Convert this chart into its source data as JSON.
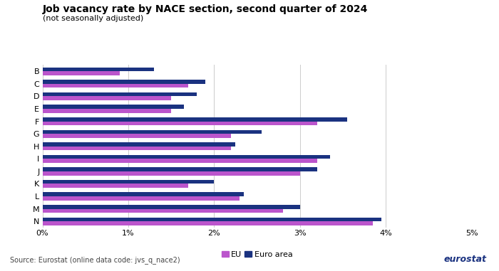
{
  "title": "Job vacancy rate by NACE section, second quarter of 2024",
  "subtitle": "(not seasonally adjusted)",
  "categories": [
    "B",
    "C",
    "D",
    "E",
    "F",
    "G",
    "H",
    "I",
    "J",
    "K",
    "L",
    "M",
    "N"
  ],
  "eu_values": [
    0.9,
    1.7,
    1.5,
    1.5,
    3.2,
    2.2,
    2.2,
    3.2,
    3.0,
    1.7,
    2.3,
    2.8,
    3.85
  ],
  "euro_values": [
    1.3,
    1.9,
    1.8,
    1.65,
    3.55,
    2.55,
    2.25,
    3.35,
    3.2,
    2.0,
    2.35,
    3.0,
    3.95
  ],
  "eu_color": "#BB55CC",
  "euro_color": "#1A3280",
  "xlim_max": 5,
  "xticklabels": [
    "0%",
    "1%",
    "2%",
    "3%",
    "4%",
    "5%"
  ],
  "source_text": "Source: Eurostat (online data code: jvs_q_nace2)",
  "legend_eu": "EU",
  "legend_euro": "Euro area",
  "bar_height": 0.32,
  "background_color": "#ffffff",
  "grid_color": "#cccccc",
  "title_fontsize": 10,
  "subtitle_fontsize": 8,
  "tick_fontsize": 8,
  "source_fontsize": 7,
  "legend_fontsize": 8,
  "eurostat_color": "#1A3280"
}
